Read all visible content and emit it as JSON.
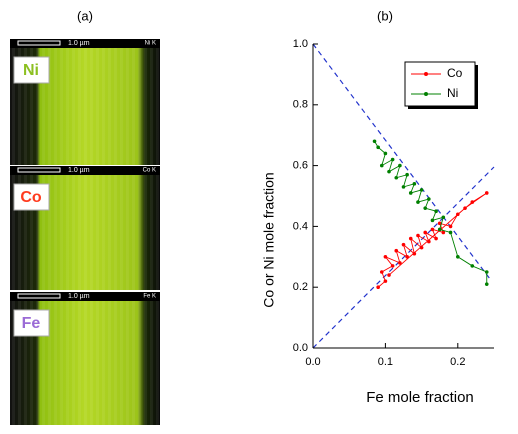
{
  "panel_a": {
    "label": "(a)",
    "maps": [
      {
        "element": "Ni",
        "scale": "1.0 µm",
        "signal": "Ni K"
      },
      {
        "element": "Co",
        "scale": "1.0 µm",
        "signal": "Co K"
      },
      {
        "element": "Fe",
        "scale": "1.0 µm",
        "signal": "Fe K"
      }
    ]
  },
  "panel_b": {
    "label": "(b)"
  },
  "chart_data": {
    "type": "line",
    "xlabel": "Fe mole fraction",
    "ylabel": "Co or Ni mole fraction",
    "xlim": [
      0,
      0.25
    ],
    "ylim": [
      0,
      1
    ],
    "xticks": [
      {
        "value": 0,
        "label": "0.0"
      },
      {
        "value": 0.1,
        "label": "0.1"
      },
      {
        "value": 0.2,
        "label": "0.2"
      }
    ],
    "yticks": [
      {
        "value": 0,
        "label": "0.0"
      },
      {
        "value": 0.2,
        "label": "0.2"
      },
      {
        "value": 0.4,
        "label": "0.4"
      },
      {
        "value": 0.6,
        "label": "0.6"
      },
      {
        "value": 0.8,
        "label": "0.8"
      },
      {
        "value": 1,
        "label": "1.0"
      }
    ],
    "legend": "upper right",
    "series": [
      {
        "name": "Co",
        "color": "#ff0000",
        "x": [
          0.09,
          0.1,
          0.095,
          0.11,
          0.1,
          0.12,
          0.115,
          0.13,
          0.125,
          0.14,
          0.135,
          0.15,
          0.145,
          0.16,
          0.155,
          0.17,
          0.165,
          0.18,
          0.175,
          0.19,
          0.2,
          0.22,
          0.24,
          0.21,
          0.105
        ],
        "values": [
          0.2,
          0.22,
          0.25,
          0.27,
          0.3,
          0.28,
          0.32,
          0.3,
          0.34,
          0.31,
          0.36,
          0.33,
          0.37,
          0.35,
          0.38,
          0.36,
          0.39,
          0.38,
          0.41,
          0.4,
          0.44,
          0.48,
          0.51,
          0.46,
          0.24
        ]
      },
      {
        "name": "Ni",
        "color": "#008000",
        "x": [
          0.085,
          0.09,
          0.1,
          0.095,
          0.11,
          0.105,
          0.12,
          0.115,
          0.13,
          0.125,
          0.14,
          0.135,
          0.15,
          0.145,
          0.16,
          0.155,
          0.17,
          0.165,
          0.18,
          0.175,
          0.19,
          0.2,
          0.22,
          0.24,
          0.24
        ],
        "values": [
          0.68,
          0.66,
          0.64,
          0.6,
          0.62,
          0.58,
          0.6,
          0.56,
          0.57,
          0.53,
          0.54,
          0.51,
          0.52,
          0.48,
          0.49,
          0.46,
          0.45,
          0.42,
          0.43,
          0.39,
          0.38,
          0.3,
          0.27,
          0.25,
          0.21
        ]
      }
    ]
  }
}
